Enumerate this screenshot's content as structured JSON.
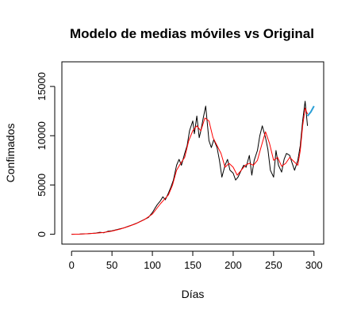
{
  "chart_data": {
    "type": "line",
    "title": "Modelo de medias móviles vs Original",
    "xlabel": "Días",
    "ylabel": "Confimados",
    "xlim": [
      -12,
      312
    ],
    "ylim": [
      -1000,
      17500
    ],
    "x_ticks": [
      0,
      50,
      100,
      150,
      200,
      250,
      300
    ],
    "y_ticks": [
      0,
      5000,
      10000,
      15000
    ],
    "grid": false,
    "legend": "none",
    "series": [
      {
        "role": "original",
        "color": "#000000",
        "x": [
          0,
          10,
          20,
          30,
          35,
          40,
          45,
          50,
          55,
          60,
          65,
          70,
          75,
          80,
          85,
          90,
          95,
          100,
          103,
          106,
          110,
          113,
          116,
          120,
          123,
          126,
          130,
          133,
          136,
          140,
          143,
          146,
          150,
          152,
          155,
          158,
          160,
          163,
          166,
          170,
          173,
          176,
          180,
          183,
          186,
          190,
          193,
          196,
          200,
          203,
          206,
          210,
          213,
          216,
          220,
          223,
          226,
          230,
          233,
          236,
          240,
          243,
          246,
          250,
          253,
          256,
          260,
          263,
          266,
          270,
          273,
          276,
          280,
          283,
          286,
          289,
          292
        ],
        "y": [
          0,
          10,
          50,
          120,
          200,
          150,
          300,
          350,
          450,
          550,
          650,
          800,
          950,
          1100,
          1300,
          1500,
          1700,
          2200,
          2600,
          3000,
          3400,
          3800,
          3500,
          4200,
          4800,
          5500,
          7000,
          7600,
          7000,
          8200,
          9000,
          10500,
          11500,
          10200,
          12000,
          9800,
          10500,
          11800,
          13000,
          9500,
          8800,
          9600,
          8800,
          7500,
          5800,
          7000,
          7600,
          6500,
          6200,
          5500,
          5800,
          6500,
          7000,
          6800,
          8000,
          6000,
          7500,
          8500,
          10000,
          11000,
          9800,
          8600,
          6500,
          5800,
          8500,
          7000,
          6300,
          7600,
          8200,
          8000,
          7200,
          6500,
          7500,
          9000,
          11500,
          13500,
          11000
        ]
      },
      {
        "role": "moving-average",
        "color": "#ff0000",
        "x": [
          0,
          10,
          20,
          30,
          40,
          50,
          60,
          70,
          80,
          90,
          100,
          110,
          120,
          125,
          130,
          135,
          140,
          145,
          150,
          155,
          160,
          165,
          170,
          175,
          180,
          185,
          190,
          195,
          200,
          205,
          210,
          215,
          220,
          225,
          230,
          235,
          240,
          245,
          250,
          255,
          260,
          265,
          270,
          275,
          280,
          283,
          286,
          289,
          292
        ],
        "y": [
          0,
          10,
          50,
          100,
          180,
          320,
          520,
          780,
          1080,
          1480,
          2050,
          3100,
          4000,
          5000,
          6500,
          7200,
          7800,
          9500,
          10500,
          11000,
          10500,
          11800,
          11500,
          9800,
          9000,
          8200,
          6800,
          7200,
          6800,
          6000,
          6500,
          7000,
          7200,
          7000,
          7500,
          9000,
          10400,
          9200,
          7500,
          7800,
          6900,
          7200,
          7800,
          7400,
          7000,
          8500,
          11000,
          12800,
          12200
        ]
      },
      {
        "role": "forecast",
        "color": "#2a9fd6",
        "x": [
          292,
          296,
          300
        ],
        "y": [
          12000,
          12400,
          13000
        ]
      }
    ]
  }
}
